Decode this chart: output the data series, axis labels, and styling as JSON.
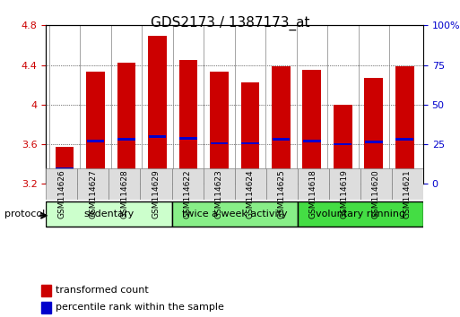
{
  "title": "GDS2173 / 1387173_at",
  "samples": [
    "GSM114626",
    "GSM114627",
    "GSM114628",
    "GSM114629",
    "GSM114622",
    "GSM114623",
    "GSM114624",
    "GSM114625",
    "GSM114618",
    "GSM114619",
    "GSM114620",
    "GSM114621"
  ],
  "bar_values": [
    3.57,
    4.33,
    4.42,
    4.69,
    4.45,
    4.33,
    4.22,
    4.39,
    4.35,
    4.0,
    4.27,
    4.39
  ],
  "percentile_values": [
    3.35,
    3.63,
    3.65,
    3.68,
    3.66,
    3.61,
    3.61,
    3.65,
    3.63,
    3.6,
    3.62,
    3.65
  ],
  "bar_bottom": 3.2,
  "ylim_left": [
    3.2,
    4.8
  ],
  "ylim_right": [
    0,
    100
  ],
  "yticks_left": [
    3.2,
    3.6,
    4.0,
    4.4,
    4.8
  ],
  "yticks_right": [
    0,
    25,
    50,
    75,
    100
  ],
  "ytick_labels_left": [
    "3.2",
    "3.6",
    "4",
    "4.4",
    "4.8"
  ],
  "ytick_labels_right": [
    "0",
    "25",
    "50",
    "75",
    "100%"
  ],
  "bar_color": "#cc0000",
  "percentile_color": "#0000cc",
  "groups": [
    {
      "label": "sedentary",
      "start": 0,
      "end": 3,
      "color": "#ccffcc"
    },
    {
      "label": "twice a week activity",
      "start": 4,
      "end": 7,
      "color": "#88ee88"
    },
    {
      "label": "voluntary running",
      "start": 8,
      "end": 11,
      "color": "#44dd44"
    }
  ],
  "protocol_label": "protocol",
  "legend_items": [
    {
      "label": "transformed count",
      "color": "#cc0000"
    },
    {
      "label": "percentile rank within the sample",
      "color": "#0000cc"
    }
  ],
  "grid_color": "#000000",
  "background_color": "#ffffff",
  "bar_width": 0.6,
  "xlabel_fontsize": 7,
  "title_fontsize": 11
}
